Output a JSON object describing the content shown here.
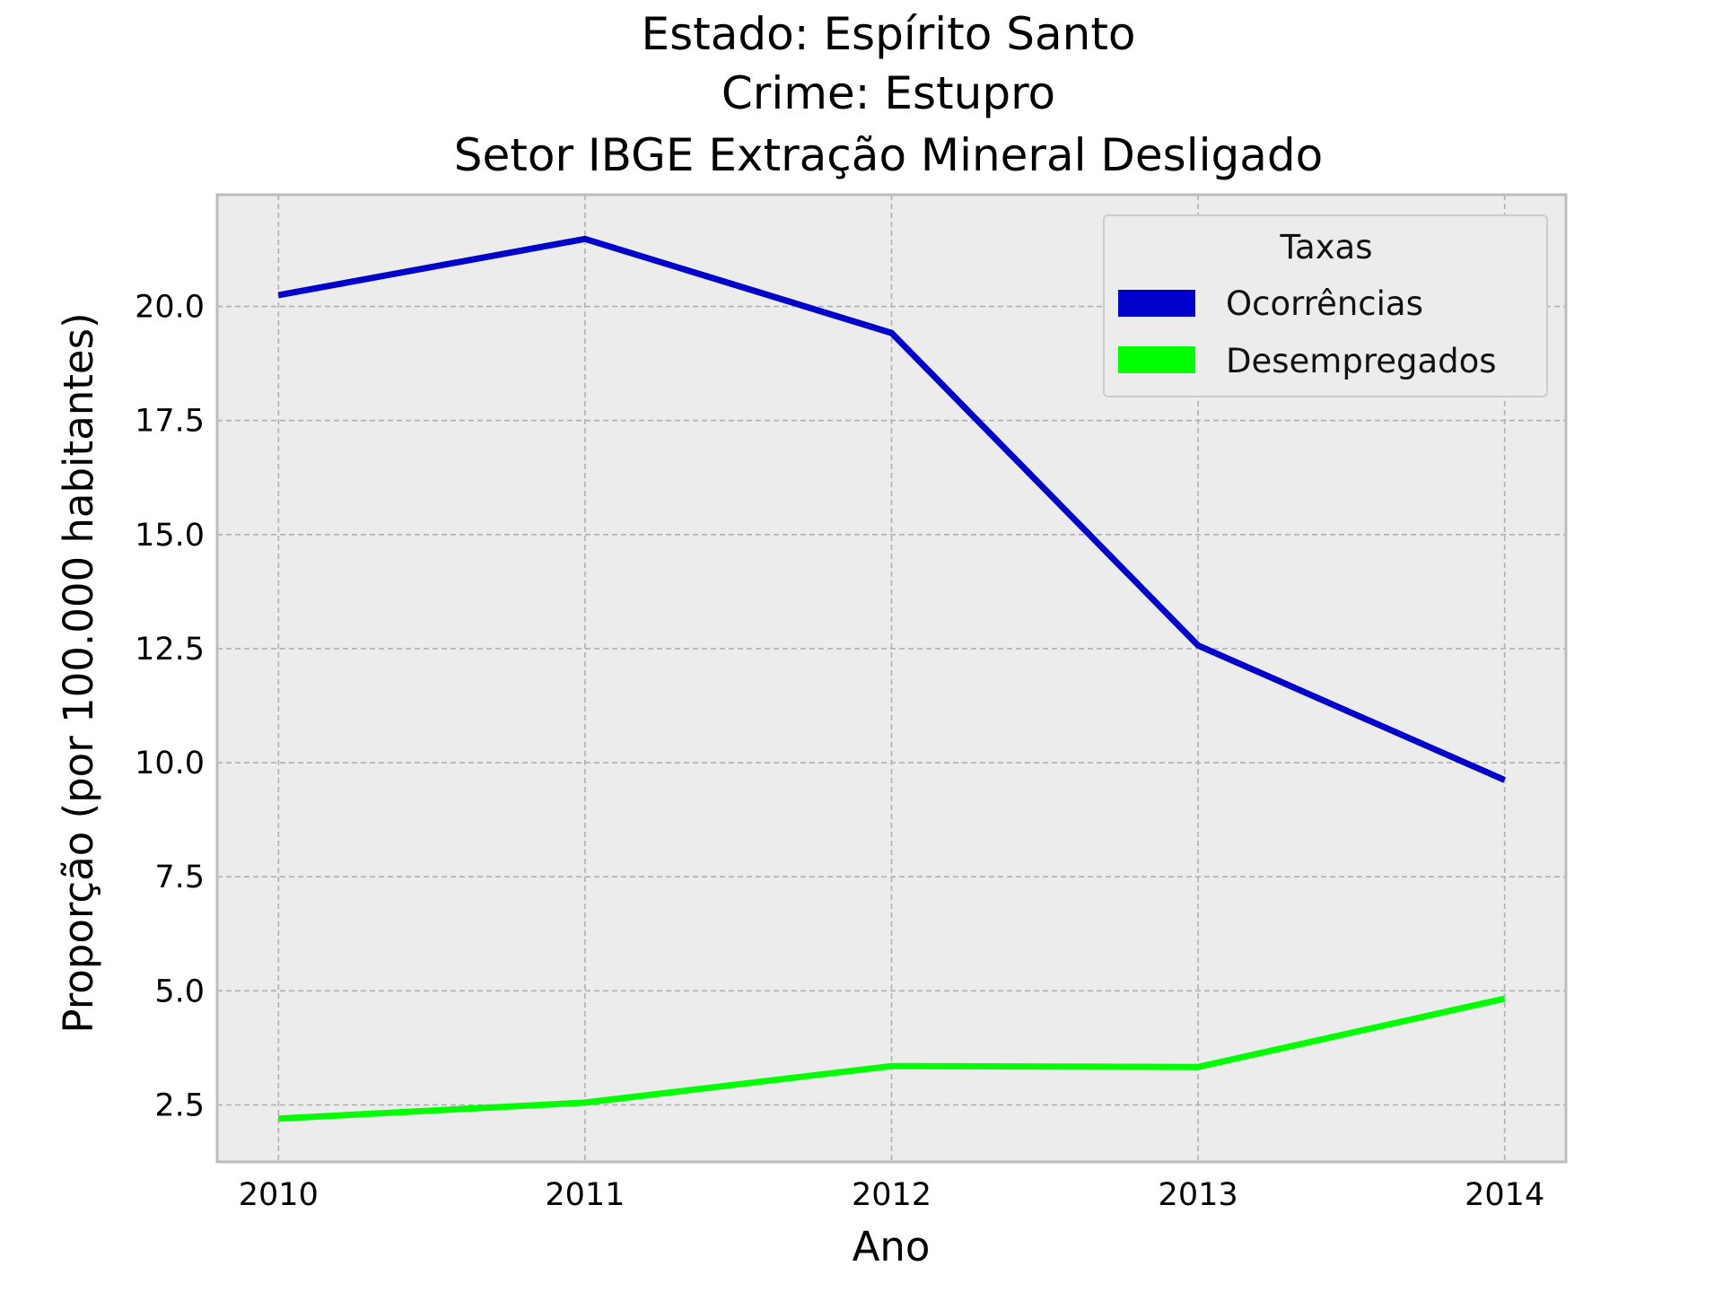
{
  "chart_data": {
    "type": "line",
    "title_lines": [
      "Estado: Espírito Santo",
      "Crime: Estupro",
      "Setor IBGE  Extração Mineral   Desligado"
    ],
    "xlabel": "Ano",
    "ylabel": "Proporção (por 100.000 habitantes)",
    "x": [
      2010,
      2011,
      2012,
      2013,
      2014
    ],
    "x_tick_labels": [
      "2010",
      "2011",
      "2012",
      "2013",
      "2014"
    ],
    "y_ticks": [
      2.5,
      5.0,
      7.5,
      10.0,
      12.5,
      15.0,
      17.5,
      20.0
    ],
    "y_tick_labels": [
      "2.5",
      "5.0",
      "7.5",
      "10.0",
      "12.5",
      "15.0",
      "17.5",
      "20.0"
    ],
    "xlim": [
      2009.8,
      2014.2
    ],
    "ylim": [
      1.25,
      22.45
    ],
    "grid": true,
    "legend": {
      "title": "Taxas",
      "placement": "top-right"
    },
    "series": [
      {
        "name": "Ocorrências",
        "color": "#0000cc",
        "values": [
          20.25,
          21.48,
          19.42,
          12.57,
          9.62
        ]
      },
      {
        "name": "Desempregados",
        "color": "#00ff00",
        "values": [
          2.2,
          2.55,
          3.35,
          3.33,
          4.83
        ]
      }
    ],
    "colors": {
      "plot_background": "#ececec",
      "frame": "#bcbcbc"
    }
  }
}
